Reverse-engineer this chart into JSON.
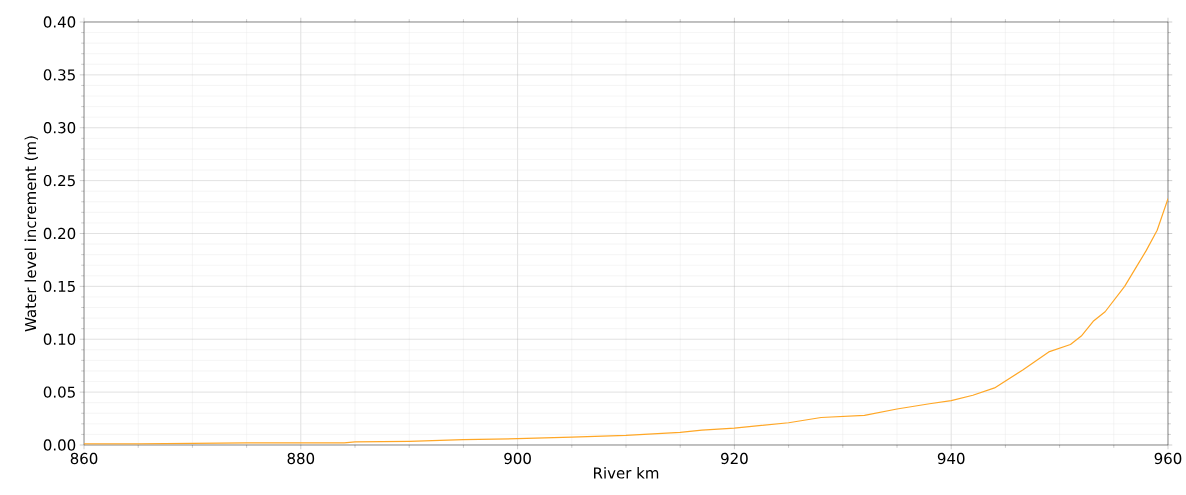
{
  "chart_data": {
    "type": "line",
    "xlabel": "River km",
    "ylabel": "Water level increment (m)",
    "x": [
      860,
      865,
      870,
      875,
      880,
      884,
      885,
      890,
      895,
      900,
      905,
      910,
      915,
      917,
      920,
      925,
      928,
      932,
      935,
      938,
      940,
      942,
      944,
      946.6,
      949,
      951,
      952,
      953.1,
      954.2,
      956,
      957,
      958,
      959,
      960
    ],
    "series": [
      {
        "color": "#ffa726",
        "values": [
          0.001,
          0.001,
          0.0015,
          0.002,
          0.002,
          0.002,
          0.003,
          0.0035,
          0.005,
          0.006,
          0.0075,
          0.009,
          0.012,
          0.014,
          0.016,
          0.021,
          0.026,
          0.028,
          0.034,
          0.039,
          0.042,
          0.047,
          0.054,
          0.071,
          0.088,
          0.095,
          0.103,
          0.117,
          0.126,
          0.15,
          0.167,
          0.184,
          0.203,
          0.233
        ]
      }
    ],
    "xlim": [
      860,
      960
    ],
    "ylim": [
      0,
      0.4
    ],
    "xticks": [
      860,
      880,
      900,
      920,
      940,
      960
    ],
    "yticks": [
      {
        "value": 0,
        "label": "0.00"
      },
      {
        "value": 0.05,
        "label": "0.05"
      },
      {
        "value": 0.1,
        "label": "0.10"
      },
      {
        "value": 0.15,
        "label": "0.15"
      },
      {
        "value": 0.2,
        "label": "0.20"
      },
      {
        "value": 0.25,
        "label": "0.25"
      },
      {
        "value": 0.3,
        "label": "0.30"
      },
      {
        "value": 0.35,
        "label": "0.35"
      },
      {
        "value": 0.4,
        "label": "0.40"
      }
    ],
    "grid": true,
    "marker": "none",
    "line_style": "solid"
  }
}
